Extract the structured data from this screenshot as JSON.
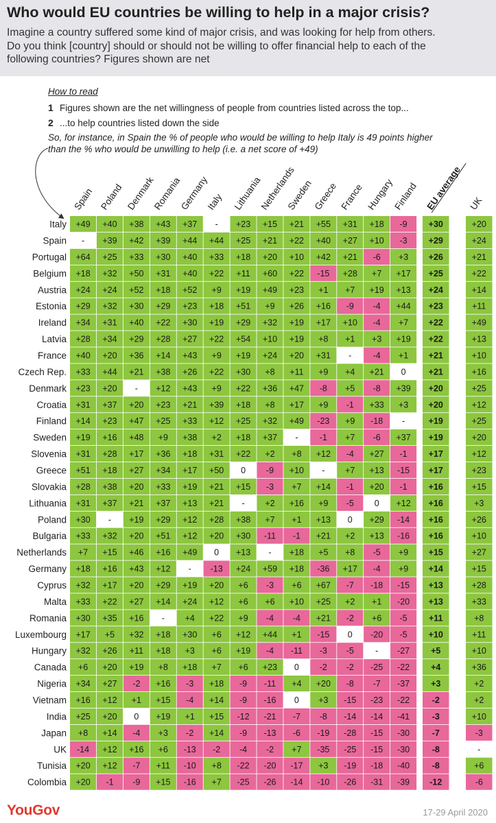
{
  "title": "Who would EU countries be willing to help in a major crisis?",
  "subtitle_lines": [
    "Imagine a country suffered some kind of major crisis, and was looking for help from others.",
    "Do you think [country] should or should not be willing to offer financial help to each of the",
    "following countries? Figures shown are net"
  ],
  "how_to_read": {
    "heading": "How to read",
    "steps": [
      {
        "num": "1",
        "text": "Figures shown are the net willingness of people from countries listed across the top..."
      },
      {
        "num": "2",
        "text": "...to help countries listed down the side"
      }
    ],
    "example_lines": [
      "So, for instance, in Spain the % of people who would be willing to help Italy is 49 points higher",
      "than the % who would be unwilling to help (i.e. a net score of +49)"
    ]
  },
  "footer": {
    "brand": "YouGov",
    "date": "17-29 April 2020"
  },
  "colors": {
    "positive": "#8dc63f",
    "negative": "#e8689a",
    "neutral": "#ffffff",
    "header_bg": "#e6e6ea",
    "brand": "#e03a2f"
  },
  "chart_data": {
    "type": "heatmap",
    "columns": [
      "Spain",
      "Poland",
      "Denmark",
      "Romania",
      "Germany",
      "Italy",
      "Lithuania",
      "Netherlands",
      "Sweden",
      "Greece",
      "France",
      "Hungary",
      "Finland",
      "EU average",
      "UK"
    ],
    "rows": [
      {
        "name": "Italy",
        "values": [
          "+49",
          "+40",
          "+38",
          "+43",
          "+37",
          "-",
          "+23",
          "+15",
          "+21",
          "+55",
          "+31",
          "+18",
          "-9",
          "+30",
          "+20"
        ]
      },
      {
        "name": "Spain",
        "values": [
          "-",
          "+39",
          "+42",
          "+39",
          "+44",
          "+44",
          "+25",
          "+21",
          "+22",
          "+40",
          "+27",
          "+10",
          "-3",
          "+29",
          "+24"
        ]
      },
      {
        "name": "Portugal",
        "values": [
          "+64",
          "+25",
          "+33",
          "+30",
          "+40",
          "+33",
          "+18",
          "+20",
          "+10",
          "+42",
          "+21",
          "-6",
          "+3",
          "+26",
          "+21"
        ]
      },
      {
        "name": "Belgium",
        "values": [
          "+18",
          "+32",
          "+50",
          "+31",
          "+40",
          "+22",
          "+11",
          "+60",
          "+22",
          "-15",
          "+28",
          "+7",
          "+17",
          "+25",
          "+22"
        ]
      },
      {
        "name": "Austria",
        "values": [
          "+24",
          "+24",
          "+52",
          "+18",
          "+52",
          "+9",
          "+19",
          "+49",
          "+23",
          "+1",
          "+7",
          "+19",
          "+13",
          "+24",
          "+14"
        ]
      },
      {
        "name": "Estonia",
        "values": [
          "+29",
          "+32",
          "+30",
          "+29",
          "+23",
          "+18",
          "+51",
          "+9",
          "+26",
          "+16",
          "-9",
          "-4",
          "+44",
          "+23",
          "+11"
        ]
      },
      {
        "name": "Ireland",
        "values": [
          "+34",
          "+31",
          "+40",
          "+22",
          "+30",
          "+19",
          "+29",
          "+32",
          "+19",
          "+17",
          "+10",
          "-4",
          "+7",
          "+22",
          "+49"
        ]
      },
      {
        "name": "Latvia",
        "values": [
          "+28",
          "+34",
          "+29",
          "+28",
          "+27",
          "+22",
          "+54",
          "+10",
          "+19",
          "+8",
          "+1",
          "+3",
          "+19",
          "+22",
          "+13"
        ]
      },
      {
        "name": "France",
        "values": [
          "+40",
          "+20",
          "+36",
          "+14",
          "+43",
          "+9",
          "+19",
          "+24",
          "+20",
          "+31",
          "-",
          "-4",
          "+1",
          "+21",
          "+10"
        ]
      },
      {
        "name": "Czech Rep.",
        "values": [
          "+33",
          "+44",
          "+21",
          "+38",
          "+26",
          "+22",
          "+30",
          "+8",
          "+11",
          "+9",
          "+4",
          "+21",
          "0",
          "+21",
          "+16"
        ]
      },
      {
        "name": "Denmark",
        "values": [
          "+23",
          "+20",
          "-",
          "+12",
          "+43",
          "+9",
          "+22",
          "+36",
          "+47",
          "-8",
          "+5",
          "-8",
          "+39",
          "+20",
          "+25"
        ]
      },
      {
        "name": "Croatia",
        "values": [
          "+31",
          "+37",
          "+20",
          "+23",
          "+21",
          "+39",
          "+18",
          "+8",
          "+17",
          "+9",
          "-1",
          "+33",
          "+3",
          "+20",
          "+12"
        ]
      },
      {
        "name": "Finland",
        "values": [
          "+14",
          "+23",
          "+47",
          "+25",
          "+33",
          "+12",
          "+25",
          "+32",
          "+49",
          "-23",
          "+9",
          "-18",
          "-",
          "+19",
          "+25"
        ]
      },
      {
        "name": "Sweden",
        "values": [
          "+19",
          "+16",
          "+48",
          "+9",
          "+38",
          "+2",
          "+18",
          "+37",
          "-",
          "-1",
          "+7",
          "-6",
          "+37",
          "+19",
          "+20"
        ]
      },
      {
        "name": "Slovenia",
        "values": [
          "+31",
          "+28",
          "+17",
          "+36",
          "+18",
          "+31",
          "+22",
          "+2",
          "+8",
          "+12",
          "-4",
          "+27",
          "-1",
          "+17",
          "+12"
        ]
      },
      {
        "name": "Greece",
        "values": [
          "+51",
          "+18",
          "+27",
          "+34",
          "+17",
          "+50",
          "0",
          "-9",
          "+10",
          "-",
          "+7",
          "+13",
          "-15",
          "+17",
          "+23"
        ]
      },
      {
        "name": "Slovakia",
        "values": [
          "+28",
          "+38",
          "+20",
          "+33",
          "+19",
          "+21",
          "+15",
          "-3",
          "+7",
          "+14",
          "-1",
          "+20",
          "-1",
          "+16",
          "+15"
        ]
      },
      {
        "name": "Lithuania",
        "values": [
          "+31",
          "+37",
          "+21",
          "+37",
          "+13",
          "+21",
          "-",
          "+2",
          "+16",
          "+9",
          "-5",
          "0",
          "+12",
          "+16",
          "+3"
        ]
      },
      {
        "name": "Poland",
        "values": [
          "+30",
          "-",
          "+19",
          "+29",
          "+12",
          "+28",
          "+38",
          "+7",
          "+1",
          "+13",
          "0",
          "+29",
          "-14",
          "+16",
          "+26"
        ]
      },
      {
        "name": "Bulgaria",
        "values": [
          "+33",
          "+32",
          "+20",
          "+51",
          "+12",
          "+20",
          "+30",
          "-11",
          "-1",
          "+21",
          "+2",
          "+13",
          "-16",
          "+16",
          "+10"
        ]
      },
      {
        "name": "Netherlands",
        "values": [
          "+7",
          "+15",
          "+46",
          "+16",
          "+49",
          "0",
          "+13",
          "-",
          "+18",
          "+5",
          "+8",
          "-5",
          "+9",
          "+15",
          "+27"
        ]
      },
      {
        "name": "Germany",
        "values": [
          "+18",
          "+16",
          "+43",
          "+12",
          "-",
          "-13",
          "+24",
          "+59",
          "+18",
          "-36",
          "+17",
          "-4",
          "+9",
          "+14",
          "+15"
        ]
      },
      {
        "name": "Cyprus",
        "values": [
          "+32",
          "+17",
          "+20",
          "+29",
          "+19",
          "+20",
          "+6",
          "-3",
          "+6",
          "+67",
          "-7",
          "-18",
          "-15",
          "+13",
          "+28"
        ]
      },
      {
        "name": "Malta",
        "values": [
          "+33",
          "+22",
          "+27",
          "+14",
          "+24",
          "+12",
          "+6",
          "+6",
          "+10",
          "+25",
          "+2",
          "+1",
          "-20",
          "+13",
          "+33"
        ]
      },
      {
        "name": "Romania",
        "values": [
          "+30",
          "+35",
          "+16",
          "-",
          "+4",
          "+22",
          "+9",
          "-4",
          "-4",
          "+21",
          "-2",
          "+6",
          "-5",
          "+11",
          "+8"
        ]
      },
      {
        "name": "Luxembourg",
        "values": [
          "+17",
          "+5",
          "+32",
          "+18",
          "+30",
          "+6",
          "+12",
          "+44",
          "+1",
          "-15",
          "0",
          "-20",
          "-5",
          "+10",
          "+11"
        ]
      },
      {
        "name": "Hungary",
        "values": [
          "+32",
          "+26",
          "+11",
          "+18",
          "+3",
          "+6",
          "+19",
          "-4",
          "-11",
          "-3",
          "-5",
          "-",
          "-27",
          "+5",
          "+10"
        ]
      },
      {
        "name": "Canada",
        "values": [
          "+6",
          "+20",
          "+19",
          "+8",
          "+18",
          "+7",
          "+6",
          "+23",
          "0",
          "-2",
          "-2",
          "-25",
          "-22",
          "+4",
          "+36"
        ]
      },
      {
        "name": "Nigeria",
        "values": [
          "+34",
          "+27",
          "-2",
          "+16",
          "-3",
          "+18",
          "-9",
          "-11",
          "+4",
          "+20",
          "-8",
          "-7",
          "-37",
          "+3",
          "+2"
        ]
      },
      {
        "name": "Vietnam",
        "values": [
          "+16",
          "+12",
          "+1",
          "+15",
          "-4",
          "+14",
          "-9",
          "-16",
          "0",
          "+3",
          "-15",
          "-23",
          "-22",
          "-2",
          "+2"
        ]
      },
      {
        "name": "India",
        "values": [
          "+25",
          "+20",
          "0",
          "+19",
          "+1",
          "+15",
          "-12",
          "-21",
          "-7",
          "-8",
          "-14",
          "-14",
          "-41",
          "-3",
          "+10"
        ]
      },
      {
        "name": "Japan",
        "values": [
          "+8",
          "+14",
          "-4",
          "+3",
          "-2",
          "+14",
          "-9",
          "-13",
          "-6",
          "-19",
          "-28",
          "-15",
          "-30",
          "-7",
          "-3"
        ]
      },
      {
        "name": "UK",
        "values": [
          "-14",
          "+12",
          "+16",
          "+6",
          "-13",
          "-2",
          "-4",
          "-2",
          "+7",
          "-35",
          "-25",
          "-15",
          "-30",
          "-8",
          "-"
        ]
      },
      {
        "name": "Tunisia",
        "values": [
          "+20",
          "+12",
          "-7",
          "+11",
          "-10",
          "+8",
          "-22",
          "-20",
          "-17",
          "+3",
          "-19",
          "-18",
          "-40",
          "-8",
          "+6"
        ]
      },
      {
        "name": "Colombia",
        "values": [
          "+20",
          "-1",
          "-9",
          "+15",
          "-16",
          "+7",
          "-25",
          "-26",
          "-14",
          "-10",
          "-26",
          "-31",
          "-39",
          "-12",
          "-6"
        ]
      }
    ]
  }
}
